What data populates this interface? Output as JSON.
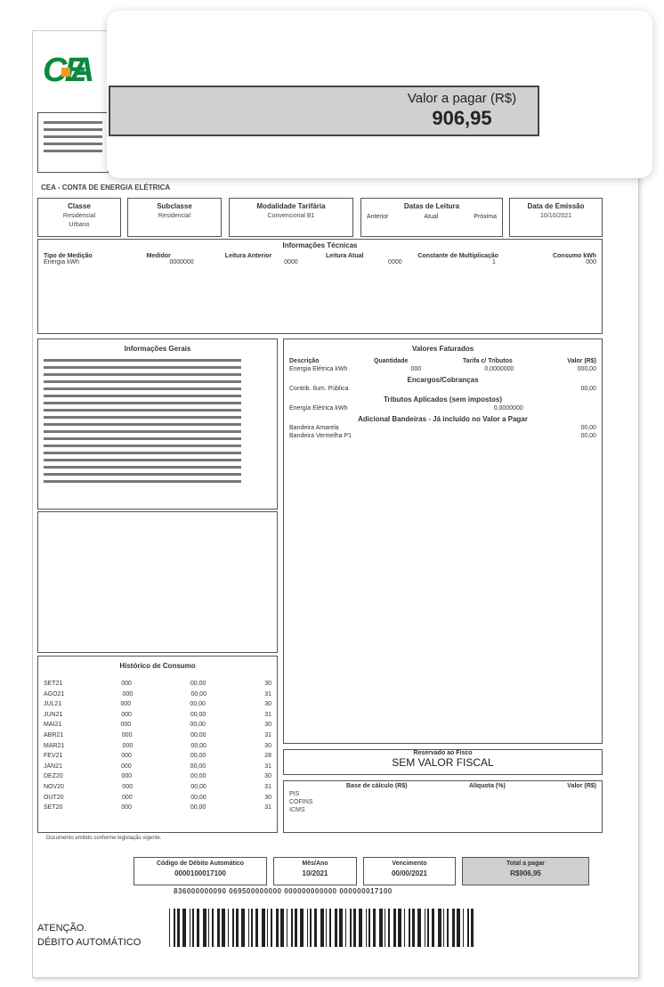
{
  "overlay": {
    "due_label": "Valor a pagar (R$)",
    "due_value": "906,95"
  },
  "logo": {
    "text": "CEA",
    "brand_color": "#0a8a3e",
    "accent_color": "#f39a1e"
  },
  "bill_title": "CEA - CONTA DE ENERGIA ELÉTRICA",
  "header_boxes": [
    {
      "title": "Classe",
      "lines": [
        "Residencial",
        "Urbano"
      ]
    },
    {
      "title": "Subclasse",
      "lines": [
        "Residencial"
      ]
    },
    {
      "title": "Modalidade Tarifária",
      "lines": [
        "Convencional B1"
      ]
    },
    {
      "title": "Datas de Leitura",
      "cols": [
        "Anterior",
        "Atual",
        "Próxima"
      ]
    },
    {
      "title": "Data de Emissão",
      "lines": [
        "10/10/2021"
      ]
    }
  ],
  "tech": {
    "title": "Informações Técnicas",
    "headers": [
      "Tipo de Medição",
      "Medidor",
      "Leitura Anterior",
      "Leitura Atual",
      "Constante de Multiplicação",
      "Consumo kWh"
    ],
    "values": [
      "Energia kWh",
      "0000000",
      "0000",
      "0000",
      "1",
      "000"
    ]
  },
  "general": {
    "title": "Informações Gerais"
  },
  "values": {
    "title": "Valores Faturados",
    "headers": [
      "Descrição",
      "Quantidade",
      "Tarifa c/ Tributos",
      "Valor (R$)"
    ],
    "sections": [
      {
        "rows": [
          [
            "Energia Elétrica kWh",
            "000",
            "0,0000000",
            "000,00"
          ]
        ]
      },
      {
        "title": "Encargos/Cobranças",
        "rows": [
          [
            "Contrib. Ilum. Pública",
            "",
            "",
            "00,00"
          ]
        ]
      },
      {
        "title": "Tributos Aplicados (sem impostos)",
        "rows": [
          [
            "Energia Elétrica kWh",
            "",
            "0,0000000",
            ""
          ]
        ]
      },
      {
        "title": "Adicional Bandeiras - Já incluído no Valor a Pagar",
        "rows": [
          [
            "Bandeira Amarela",
            "",
            "",
            "00,00"
          ],
          [
            "Bandeira Vermelha P1",
            "",
            "",
            "00,00"
          ]
        ]
      }
    ]
  },
  "history": {
    "title": "Histórico de Consumo",
    "rows": [
      [
        "SET21",
        "000",
        "00,00",
        "30"
      ],
      [
        "AGO21",
        "000",
        "00,00",
        "31"
      ],
      [
        "JUL21",
        "000",
        "00,00",
        "30"
      ],
      [
        "JUN21",
        "000",
        "00,00",
        "31"
      ],
      [
        "MAI21",
        "000",
        "00,00",
        "30"
      ],
      [
        "ABR21",
        "000",
        "00,00",
        "31"
      ],
      [
        "MAR21",
        "000",
        "00,00",
        "30"
      ],
      [
        "FEV21",
        "000",
        "00,00",
        "28"
      ],
      [
        "JAN21",
        "000",
        "00,00",
        "31"
      ],
      [
        "DEZ20",
        "000",
        "00,00",
        "30"
      ],
      [
        "NOV20",
        "000",
        "00,00",
        "31"
      ],
      [
        "OUT20",
        "000",
        "00,00",
        "30"
      ],
      [
        "SET20",
        "000",
        "00,00",
        "31"
      ]
    ]
  },
  "fisco": {
    "title": "Reservado ao Fisco",
    "text": "SEM VALOR FISCAL"
  },
  "taxes": {
    "headers": [
      "Base de cálculo (R$)",
      "Alíquota (%)",
      "Valor (R$)"
    ],
    "names": [
      "PIS",
      "COFINS",
      "ICMS"
    ]
  },
  "footer_note": "Documento emitido conforme legislação vigente.",
  "slip": [
    {
      "title": "Código de Débito Automático",
      "value": "0000100017100"
    },
    {
      "title": "Mês/Ano",
      "value": "10/2021"
    },
    {
      "title": "Vencimento",
      "value": "00/00/2021"
    },
    {
      "title": "Total a pagar",
      "value": "R$906,95"
    }
  ],
  "digit_line": "836000000090 069500000000 000000000000 000000017100",
  "attention": [
    "ATENÇÃO.",
    "DÉBITO AUTOMÁTICO"
  ]
}
